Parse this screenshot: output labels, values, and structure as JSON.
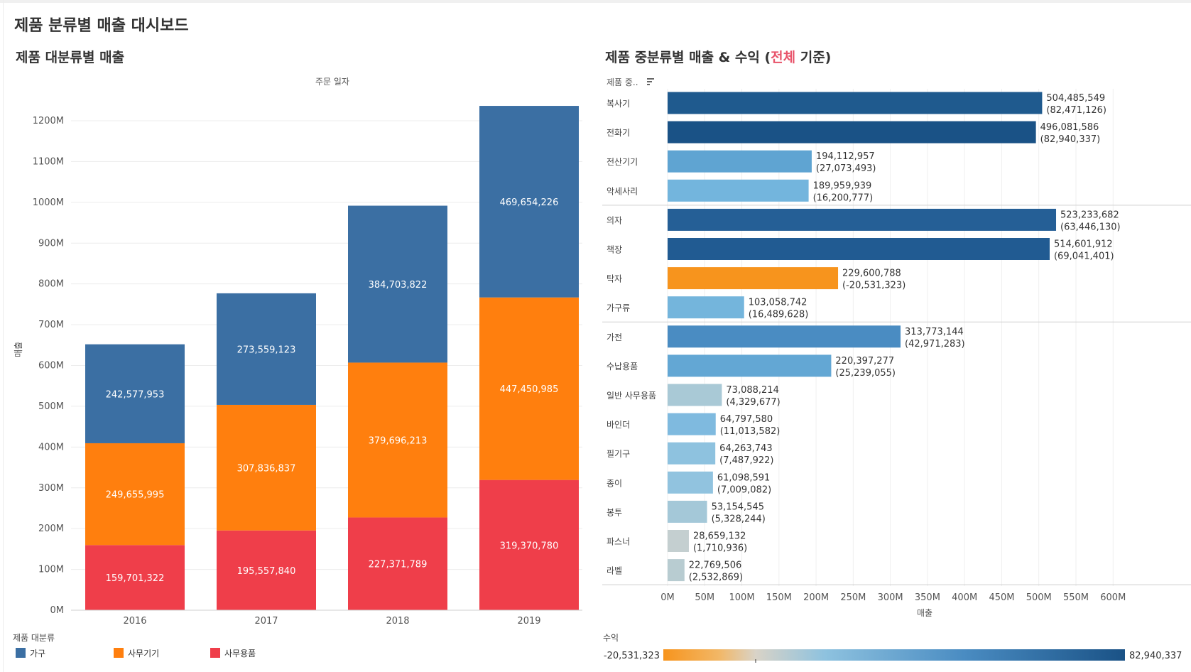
{
  "dashboard": {
    "title": "제품 분류별 매출 대시보드"
  },
  "left": {
    "title": "제품 대분류별 매출",
    "column_header": "주문 일자",
    "y_axis_label": "매출",
    "legend": {
      "title": "제품 대분류",
      "items": [
        {
          "label": "가구",
          "color": "#3b6fa3"
        },
        {
          "label": "사무기기",
          "color": "#ff7f0e"
        },
        {
          "label": "사무용품",
          "color": "#ef3e4a"
        }
      ]
    }
  },
  "right": {
    "title_prefix": "제품 중분류별 매출 & 수익 (",
    "title_highlight": "전체",
    "title_suffix": " 기준)",
    "row_header": "제품 중..",
    "x_axis_label": "매출",
    "color_legend": {
      "title": "수익",
      "min_label": "-20,531,323",
      "max_label": "82,940,337"
    }
  },
  "chart_data": [
    {
      "type": "bar",
      "stacked": true,
      "categories": [
        "2016",
        "2017",
        "2018",
        "2019"
      ],
      "series": [
        {
          "name": "사무용품",
          "color": "#ef3e4a",
          "values": [
            159701322,
            195557840,
            227371789,
            319370780
          ],
          "labels": [
            "159,701,322",
            "195,557,840",
            "227,371,789",
            "319,370,780"
          ]
        },
        {
          "name": "사무기기",
          "color": "#ff7f0e",
          "values": [
            249655995,
            307836837,
            379696213,
            447450985
          ],
          "labels": [
            "249,655,995",
            "307,836,837",
            "379,696,213",
            "447,450,985"
          ]
        },
        {
          "name": "가구",
          "color": "#3b6fa3",
          "values": [
            242577953,
            273559123,
            384703822,
            469654226
          ],
          "labels": [
            "242,577,953",
            "273,559,123",
            "384,703,822",
            "469,654,226"
          ]
        }
      ],
      "xlabel": "주문 일자",
      "ylabel": "매출",
      "ylim": [
        0,
        1290000000
      ],
      "y_ticks": [
        0,
        100000000,
        200000000,
        300000000,
        400000000,
        500000000,
        600000000,
        700000000,
        800000000,
        900000000,
        1000000000,
        1100000000,
        1200000000
      ],
      "y_tick_labels": [
        "0M",
        "100M",
        "200M",
        "300M",
        "400M",
        "500M",
        "600M",
        "700M",
        "800M",
        "900M",
        "1000M",
        "1100M",
        "1200M"
      ],
      "grid": true,
      "legend_position": "bottom-left"
    },
    {
      "type": "bar",
      "orientation": "horizontal",
      "groups": [
        {
          "rows": [
            {
              "category": "복사기",
              "sales": 504485549,
              "profit": 82471126,
              "sales_label": "504,485,549",
              "profit_label": "(82,471,126)",
              "color": "#1f5a8e"
            },
            {
              "category": "전화기",
              "sales": 496081586,
              "profit": 82940337,
              "sales_label": "496,081,586",
              "profit_label": "(82,940,337)",
              "color": "#1a5286"
            },
            {
              "category": "전산기기",
              "sales": 194112957,
              "profit": 27073493,
              "sales_label": "194,112,957",
              "profit_label": "(27,073,493)",
              "color": "#5fa4d2"
            },
            {
              "category": "악세사리",
              "sales": 189959939,
              "profit": 16200777,
              "sales_label": "189,959,939",
              "profit_label": "(16,200,777)",
              "color": "#73b5dd"
            }
          ]
        },
        {
          "rows": [
            {
              "category": "의자",
              "sales": 523233682,
              "profit": 63446130,
              "sales_label": "523,233,682",
              "profit_label": "(63,446,130)",
              "color": "#255f96"
            },
            {
              "category": "책장",
              "sales": 514601912,
              "profit": 69041401,
              "sales_label": "514,601,912",
              "profit_label": "(69,041,401)",
              "color": "#215b92"
            },
            {
              "category": "탁자",
              "sales": 229600788,
              "profit": -20531323,
              "sales_label": "229,600,788",
              "profit_label": "(-20,531,323)",
              "color": "#f7941d"
            },
            {
              "category": "가구류",
              "sales": 103058742,
              "profit": 16489628,
              "sales_label": "103,058,742",
              "profit_label": "(16,489,628)",
              "color": "#74b5dc"
            }
          ]
        },
        {
          "rows": [
            {
              "category": "가전",
              "sales": 313773144,
              "profit": 42971283,
              "sales_label": "313,773,144",
              "profit_label": "(42,971,283)",
              "color": "#4a8cc2"
            },
            {
              "category": "수납용품",
              "sales": 220397277,
              "profit": 25239055,
              "sales_label": "220,397,277",
              "profit_label": "(25,239,055)",
              "color": "#63a7d4"
            },
            {
              "category": "일반 사무용품",
              "sales": 73088214,
              "profit": 4329677,
              "sales_label": "73,088,214",
              "profit_label": "(4,329,677)",
              "color": "#a9c9d6"
            },
            {
              "category": "바인더",
              "sales": 64797580,
              "profit": 11013582,
              "sales_label": "64,797,580",
              "profit_label": "(11,013,582)",
              "color": "#7fbadf"
            },
            {
              "category": "필기구",
              "sales": 64263743,
              "profit": 7487922,
              "sales_label": "64,263,743",
              "profit_label": "(7,487,922)",
              "color": "#8ec2df"
            },
            {
              "category": "종이",
              "sales": 61098591,
              "profit": 7009082,
              "sales_label": "61,098,591",
              "profit_label": "(7,009,082)",
              "color": "#91c3df"
            },
            {
              "category": "봉투",
              "sales": 53154545,
              "profit": 5328244,
              "sales_label": "53,154,545",
              "profit_label": "(5,328,244)",
              "color": "#a4c8d8"
            },
            {
              "category": "파스너",
              "sales": 28659132,
              "profit": 1710936,
              "sales_label": "28,659,132",
              "profit_label": "(1,710,936)",
              "color": "#c4cfd0"
            },
            {
              "category": "라벨",
              "sales": 22769506,
              "profit": 2532869,
              "sales_label": "22,769,506",
              "profit_label": "(2,532,869)",
              "color": "#b8ccd1"
            }
          ]
        }
      ],
      "xlabel": "매출",
      "xlim": [
        0,
        620000000
      ],
      "x_ticks": [
        0,
        50000000,
        100000000,
        150000000,
        200000000,
        250000000,
        300000000,
        350000000,
        400000000,
        450000000,
        500000000,
        550000000,
        600000000
      ],
      "x_tick_labels": [
        "0M",
        "50M",
        "100M",
        "150M",
        "200M",
        "250M",
        "300M",
        "350M",
        "400M",
        "450M",
        "500M",
        "550M",
        "600M"
      ],
      "grid": true,
      "color_by": "수익",
      "color_range": [
        -20531323,
        82940337
      ]
    }
  ]
}
